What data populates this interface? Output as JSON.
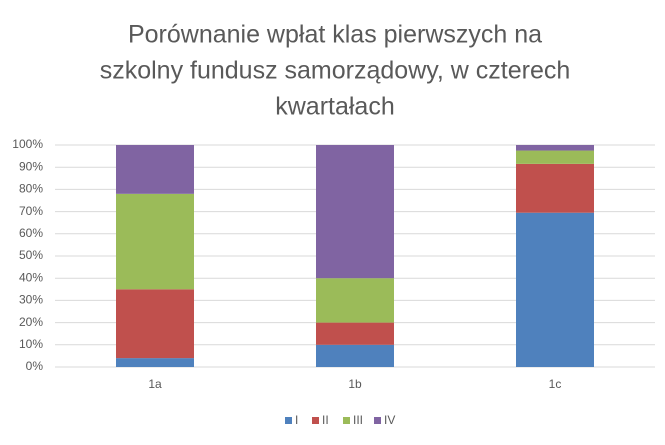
{
  "chart_data": {
    "type": "stacked_bar_100",
    "title": [
      "Porównanie wpłat klas pierwszych na",
      "szkolny fundusz samorządowy, w czterech",
      "kwartałach"
    ],
    "categories": [
      "1a",
      "1b",
      "1c"
    ],
    "series": [
      {
        "name": "I",
        "color": "#4f81bd",
        "values": [
          4,
          10,
          69.5
        ]
      },
      {
        "name": "II",
        "color": "#c0504d",
        "values": [
          31,
          10,
          22
        ]
      },
      {
        "name": "III",
        "color": "#9bbb59",
        "values": [
          43,
          20,
          6
        ]
      },
      {
        "name": "IV",
        "color": "#8064a2",
        "values": [
          22,
          60,
          2.5
        ]
      }
    ],
    "ylim": [
      0,
      100
    ],
    "yticks": [
      {
        "value": 0,
        "label": "0%"
      },
      {
        "value": 10,
        "label": "10%"
      },
      {
        "value": 20,
        "label": "20%"
      },
      {
        "value": 30,
        "label": "30%"
      },
      {
        "value": 40,
        "label": "40%"
      },
      {
        "value": 50,
        "label": "50%"
      },
      {
        "value": 60,
        "label": "60%"
      },
      {
        "value": 70,
        "label": "70%"
      },
      {
        "value": 80,
        "label": "80%"
      },
      {
        "value": 90,
        "label": "90%"
      },
      {
        "value": 100,
        "label": "100%"
      }
    ],
    "grid": true,
    "legend": "bottom"
  }
}
